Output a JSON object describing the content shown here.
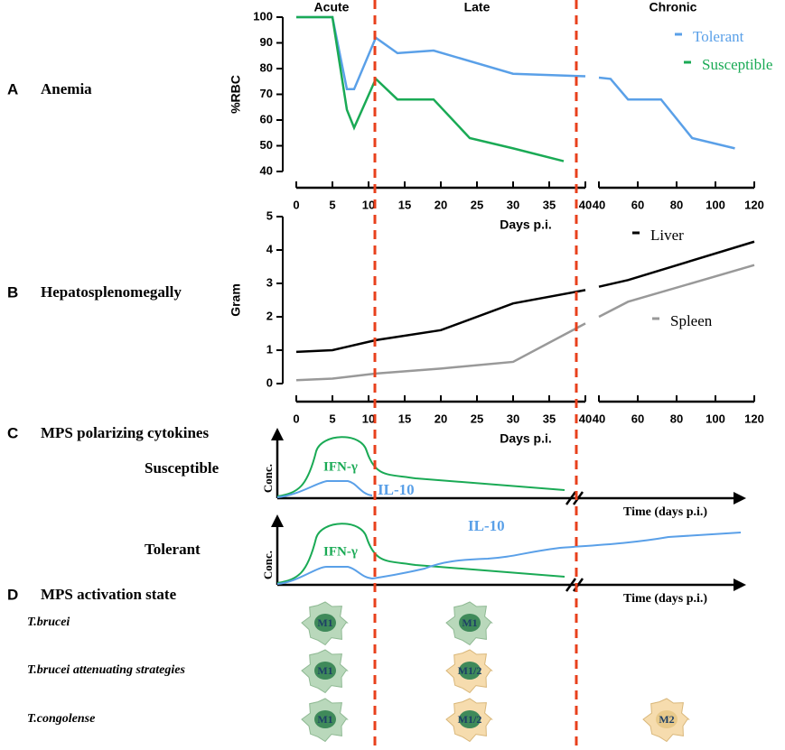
{
  "panels": [
    {
      "letter": "A",
      "title": "Anemia"
    },
    {
      "letter": "B",
      "title": "Hepatosplenomegally"
    },
    {
      "letter": "C",
      "title": "MPS polarizing cytokines"
    },
    {
      "letter": "D",
      "title": "MPS activation state"
    }
  ],
  "phases": [
    "Acute",
    "Late",
    "Chronic"
  ],
  "chart_data": [
    {
      "type": "line",
      "ylabel": "%RBC",
      "xlabel": "Days p.i.",
      "ylim": [
        40,
        100
      ],
      "yticks": [
        40,
        50,
        60,
        70,
        80,
        90,
        100
      ],
      "xsegments": [
        {
          "xlim": [
            0,
            40
          ],
          "xticks": [
            0,
            5,
            10,
            15,
            20,
            25,
            30,
            35,
            40
          ]
        },
        {
          "xlim": [
            40,
            120
          ],
          "xticks": [
            40,
            60,
            80,
            100,
            120
          ]
        }
      ],
      "series": [
        {
          "name": "Tolerant",
          "color": "#5aa0e8",
          "x": [
            0,
            5,
            7,
            8,
            11,
            14,
            19,
            30,
            40,
            null,
            40,
            46,
            55,
            72,
            88,
            110
          ],
          "values": [
            100,
            100,
            72,
            72,
            92,
            86,
            87,
            78,
            77,
            null,
            76.5,
            76,
            68,
            68,
            53,
            49
          ]
        },
        {
          "name": "Susceptible",
          "color": "#1aaa55",
          "x": [
            0,
            5,
            7,
            8,
            11,
            14,
            19,
            24,
            30,
            37
          ],
          "values": [
            100,
            100,
            64,
            57,
            76,
            68,
            68,
            53,
            49,
            44
          ]
        }
      ]
    },
    {
      "type": "line",
      "ylabel": "Gram",
      "xlabel": "Days p.i.",
      "ylim": [
        0,
        5
      ],
      "yticks": [
        0,
        1,
        2,
        3,
        4,
        5
      ],
      "xsegments": [
        {
          "xlim": [
            0,
            40
          ],
          "xticks": [
            0,
            5,
            10,
            15,
            20,
            25,
            30,
            35,
            40
          ]
        },
        {
          "xlim": [
            40,
            120
          ],
          "xticks": [
            40,
            60,
            80,
            100,
            120
          ]
        }
      ],
      "series": [
        {
          "name": "Liver",
          "color": "#000000",
          "x": [
            0,
            5,
            11,
            20,
            30,
            40,
            null,
            40,
            55,
            120
          ],
          "values": [
            0.95,
            1,
            1.3,
            1.6,
            2.4,
            2.8,
            null,
            2.9,
            3.1,
            4.25
          ]
        },
        {
          "name": "Spleen",
          "color": "#999999",
          "x": [
            0,
            5,
            11,
            20,
            30,
            40,
            null,
            40,
            55,
            120
          ],
          "values": [
            0.1,
            0.15,
            0.3,
            0.45,
            0.65,
            1.8,
            null,
            2.0,
            2.45,
            3.55
          ]
        }
      ]
    }
  ],
  "cytokines": {
    "rows": [
      {
        "label": "Susceptible",
        "ylabel": "Conc.",
        "xlabel": "Time (days p.i.)",
        "curves": [
          "IFN-γ",
          "IL-10"
        ]
      },
      {
        "label": "Tolerant",
        "ylabel": "Conc.",
        "xlabel": "Time (days p.i.)",
        "curves": [
          "IFN-γ",
          "IL-10"
        ]
      }
    ]
  },
  "activation": {
    "rows": [
      {
        "label": "T.brucei",
        "cells": [
          "M1",
          "M1"
        ]
      },
      {
        "label": "T.brucei attenuating strategies",
        "cells": [
          "M1",
          "M1/2"
        ]
      },
      {
        "label": "T.congolense",
        "cells": [
          "M1",
          "M1/2",
          "M2"
        ]
      }
    ]
  }
}
